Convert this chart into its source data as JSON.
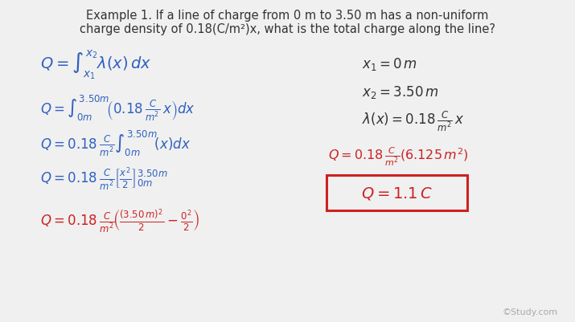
{
  "background_color": "#f0f0f0",
  "title_text": "Example 1. If a line of charge from 0 m to 3.50 m has a non-uniform\ncharge density of 0.18(C/m²)x, what is the total charge along the line?",
  "title_color": "#333333",
  "title_fontsize": 10.5,
  "blue_color": "#3060c0",
  "red_color": "#cc2222",
  "black_color": "#333333",
  "watermark": "©Study.com"
}
